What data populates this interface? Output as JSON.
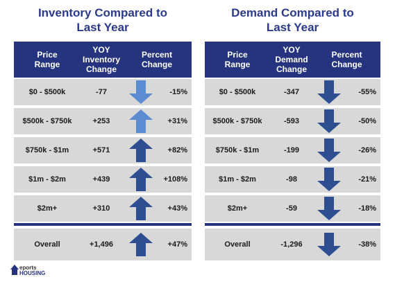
{
  "colors": {
    "header": "#26347f",
    "title": "#2b3a8c",
    "row": "#d8d8d8",
    "arrow_dark": "#2d4e91",
    "arrow_light": "#5b8bd0"
  },
  "inventory": {
    "title": "Inventory Compared to\nLast Year",
    "headers": [
      "Price\nRange",
      "YOY\nInventory\nChange",
      "Percent\nChange"
    ],
    "rows": [
      {
        "range": "$0 - $500k",
        "yoy": "-77",
        "pct": "-15%",
        "arrow": "down-light-arrow-icon"
      },
      {
        "range": "$500k - $750k",
        "yoy": "+253",
        "pct": "+31%",
        "arrow": "up-light-arrow-icon"
      },
      {
        "range": "$750k - $1m",
        "yoy": "+571",
        "pct": "+82%",
        "arrow": "up-dark-arrow-icon"
      },
      {
        "range": "$1m - $2m",
        "yoy": "+439",
        "pct": "+108%",
        "arrow": "up-dark-arrow-icon"
      },
      {
        "range": "$2m+",
        "yoy": "+310",
        "pct": "+43%",
        "arrow": "up-dark-arrow-icon"
      }
    ],
    "overall": {
      "range": "Overall",
      "yoy": "+1,496",
      "pct": "+47%",
      "arrow": "up-dark-arrow-icon"
    }
  },
  "demand": {
    "title": "Demand Compared to\nLast Year",
    "headers": [
      "Price\nRange",
      "YOY\nDemand\nChange",
      "Percent\nChange"
    ],
    "rows": [
      {
        "range": "$0 - $500k",
        "yoy": "-347",
        "pct": "-55%",
        "arrow": "down-dark-arrow-icon"
      },
      {
        "range": "$500k - $750k",
        "yoy": "-593",
        "pct": "-50%",
        "arrow": "down-dark-arrow-icon"
      },
      {
        "range": "$750k - $1m",
        "yoy": "-199",
        "pct": "-26%",
        "arrow": "down-dark-arrow-icon"
      },
      {
        "range": "$1m - $2m",
        "yoy": "-98",
        "pct": "-21%",
        "arrow": "down-dark-arrow-icon"
      },
      {
        "range": "$2m+",
        "yoy": "-59",
        "pct": "-18%",
        "arrow": "down-dark-arrow-icon"
      }
    ],
    "overall": {
      "range": "Overall",
      "yoy": "-1,296",
      "pct": "-38%",
      "arrow": "down-dark-arrow-icon"
    }
  },
  "logo": {
    "line1": "eports",
    "line2": "HOUSING"
  }
}
